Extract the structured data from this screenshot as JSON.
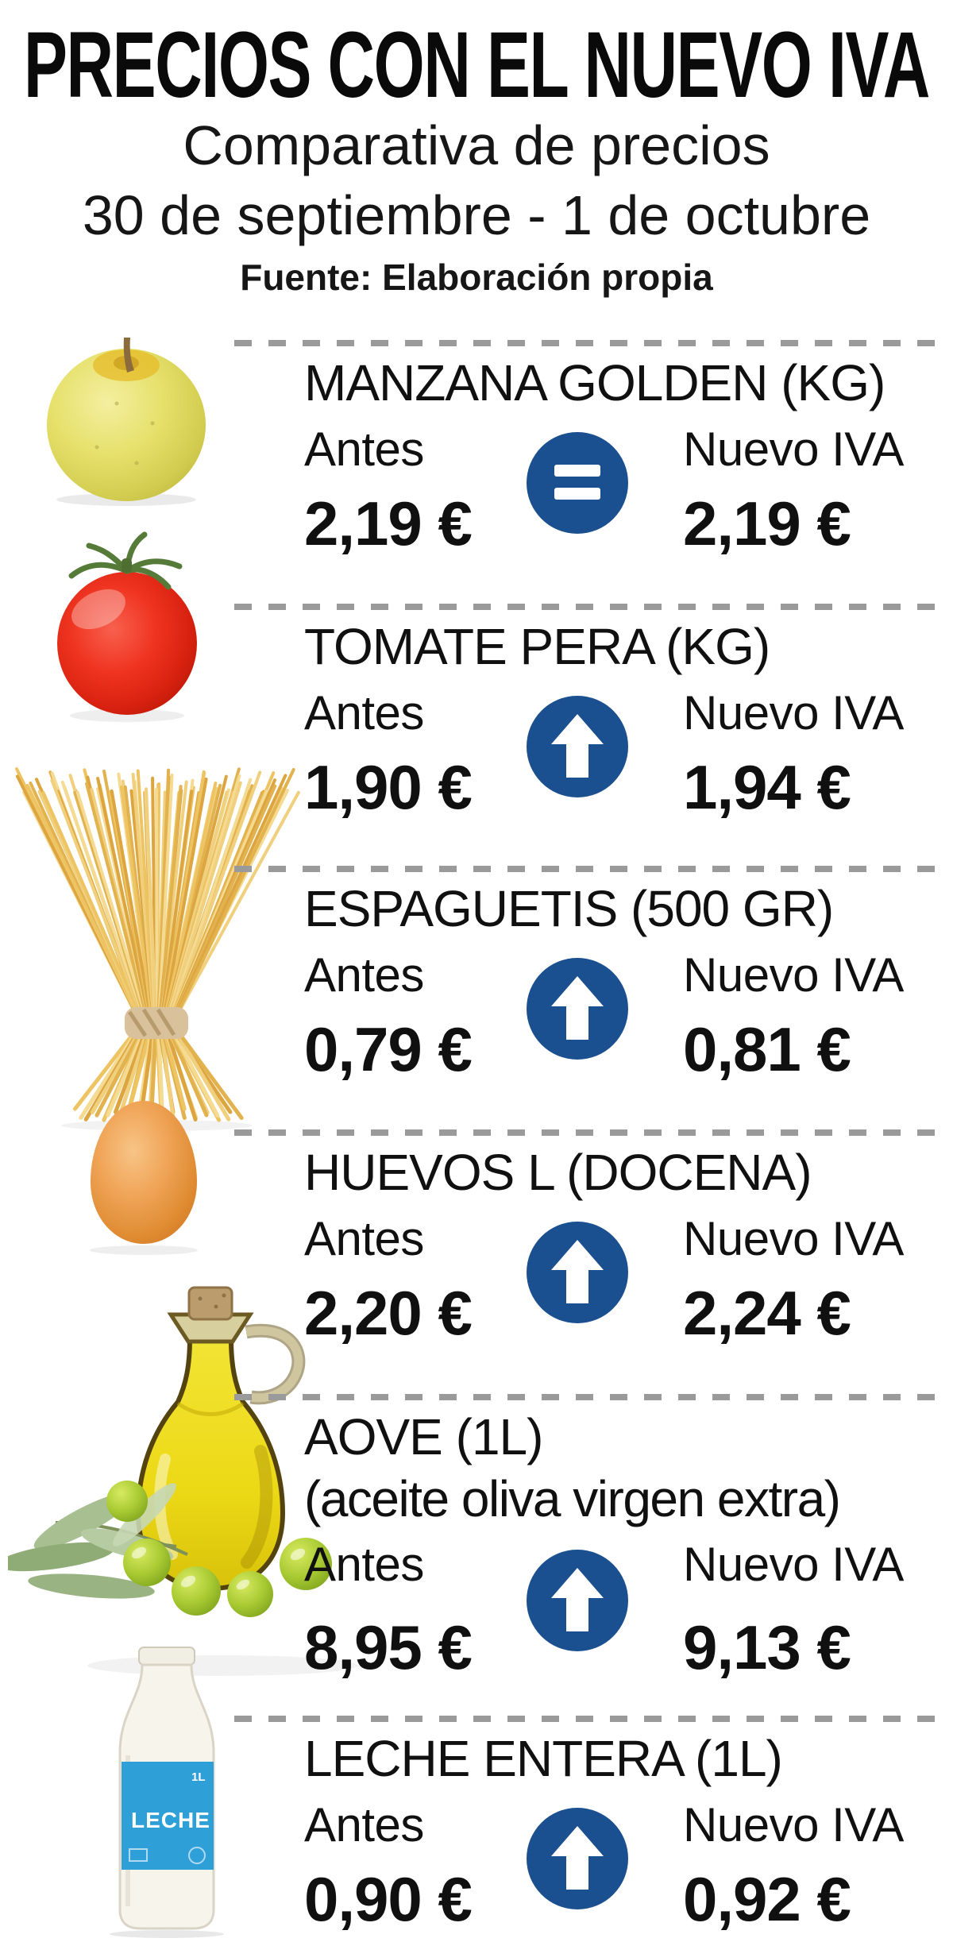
{
  "header": {
    "title": "PRECIOS CON EL NUEVO IVA",
    "subtitle_line1": "Comparativa de precios",
    "subtitle_line2": "30 de septiembre - 1 de octubre",
    "source": "Fuente: Elaboración propia"
  },
  "labels": {
    "before": "Antes",
    "after": "Nuevo IVA"
  },
  "colors": {
    "accent_blue": "#1b5090",
    "dash_gray": "#9a9a9a",
    "milk_label_blue": "#2f9fd7",
    "text_black": "#101010"
  },
  "chart_data": {
    "type": "table",
    "title": "PRECIOS CON EL NUEVO IVA",
    "subtitle": "Comparativa de precios 30 de septiembre - 1 de octubre",
    "source": "Fuente: Elaboración propia",
    "columns": [
      "Producto",
      "Antes",
      "Nuevo IVA",
      "Tendencia"
    ],
    "rows": [
      [
        "MANZANA GOLDEN (KG)",
        2.19,
        2.19,
        "igual"
      ],
      [
        "TOMATE PERA (KG)",
        1.9,
        1.94,
        "sube"
      ],
      [
        "ESPAGUETIS (500 GR)",
        0.79,
        0.81,
        "sube"
      ],
      [
        "HUEVOS L (DOCENA)",
        2.2,
        2.24,
        "sube"
      ],
      [
        "AOVE (1L) (aceite oliva virgen extra)",
        8.95,
        9.13,
        "sube"
      ],
      [
        "LECHE ENTERA (1L)",
        0.9,
        0.92,
        "sube"
      ]
    ],
    "currency": "EUR"
  },
  "products": [
    {
      "name": "MANZANA GOLDEN (KG)",
      "before_price": "2,19 €",
      "after_price": "2,19 €",
      "trend": "equal",
      "trend_icon": "equal-icon",
      "image": "golden-apple"
    },
    {
      "name": "TOMATE PERA (KG)",
      "before_price": "1,90 €",
      "after_price": "1,94 €",
      "trend": "up",
      "trend_icon": "arrow-up-icon",
      "image": "pear-tomato"
    },
    {
      "name": "ESPAGUETIS (500 GR)",
      "before_price": "0,79 €",
      "after_price": "0,81 €",
      "trend": "up",
      "trend_icon": "arrow-up-icon",
      "image": "spaghetti-bundle"
    },
    {
      "name": "HUEVOS L (DOCENA)",
      "before_price": "2,20 €",
      "after_price": "2,24 €",
      "trend": "up",
      "trend_icon": "arrow-up-icon",
      "image": "egg"
    },
    {
      "name": "AOVE (1L)",
      "name_line2": "(aceite oliva virgen extra)",
      "before_price": "8,95 €",
      "after_price": "9,13 €",
      "trend": "up",
      "trend_icon": "arrow-up-icon",
      "image": "olive-oil-bottle"
    },
    {
      "name": "LECHE ENTERA (1L)",
      "before_price": "0,90 €",
      "after_price": "0,92 €",
      "trend": "up",
      "trend_icon": "arrow-up-icon",
      "image": "milk-bottle",
      "image_text": {
        "label": "LECHE",
        "size": "1L"
      }
    }
  ]
}
